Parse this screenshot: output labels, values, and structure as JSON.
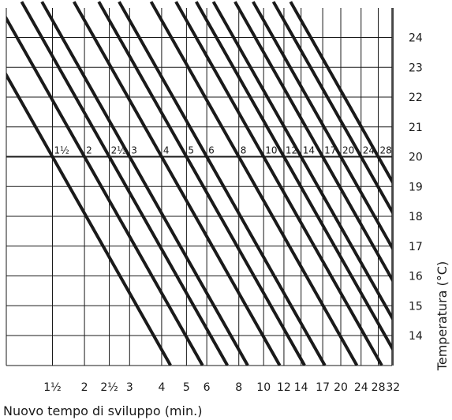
{
  "chart_data": {
    "type": "line",
    "title": "",
    "xlabel": "Nuovo tempo di sviluppo (min.)",
    "ylabel": "Temperatura  (°C)",
    "x_scale": "log",
    "xlim": [
      1.1,
      34
    ],
    "ylim": [
      13,
      25.2
    ],
    "grid": true,
    "x_ticks": [
      {
        "value": 1.5,
        "label": "1½"
      },
      {
        "value": 2,
        "label": "2"
      },
      {
        "value": 2.5,
        "label": "2½"
      },
      {
        "value": 3,
        "label": "3"
      },
      {
        "value": 4,
        "label": "4"
      },
      {
        "value": 5,
        "label": "5"
      },
      {
        "value": 6,
        "label": "6"
      },
      {
        "value": 8,
        "label": "8"
      },
      {
        "value": 10,
        "label": "10"
      },
      {
        "value": 12,
        "label": "12"
      },
      {
        "value": 14,
        "label": "14"
      },
      {
        "value": 17,
        "label": "17"
      },
      {
        "value": 20,
        "label": "20"
      },
      {
        "value": 24,
        "label": "24"
      },
      {
        "value": 28,
        "label": "28"
      },
      {
        "value": 32,
        "label": "32"
      }
    ],
    "y_ticks": [
      14,
      15,
      16,
      17,
      18,
      19,
      20,
      21,
      22,
      23,
      24
    ],
    "series": [
      {
        "label": "1½",
        "time_at_20": 1.5
      },
      {
        "label": "2",
        "time_at_20": 2
      },
      {
        "label": "2½",
        "time_at_20": 2.5
      },
      {
        "label": "3",
        "time_at_20": 3
      },
      {
        "label": "4",
        "time_at_20": 4
      },
      {
        "label": "5",
        "time_at_20": 5
      },
      {
        "label": "6",
        "time_at_20": 6
      },
      {
        "label": "8",
        "time_at_20": 8
      },
      {
        "label": "10",
        "time_at_20": 10
      },
      {
        "label": "12",
        "time_at_20": 12
      },
      {
        "label": "14",
        "time_at_20": 14
      },
      {
        "label": "17",
        "time_at_20": 17
      },
      {
        "label": "20",
        "time_at_20": 20
      },
      {
        "label": "24",
        "time_at_20": 24
      },
      {
        "label": "28",
        "time_at_20": 28
      }
    ],
    "slope_deg_per_log10": 15.2
  },
  "colors": {
    "line": "#1a1a1a",
    "grid": "#1a1a1a",
    "background": "#ffffff"
  }
}
